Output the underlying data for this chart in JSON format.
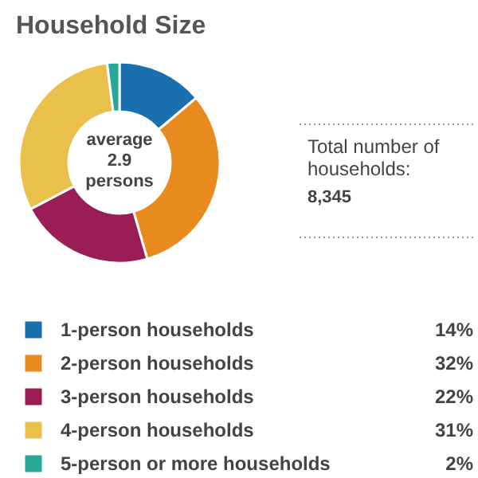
{
  "chart_data": {
    "type": "donut",
    "title": "Household Size",
    "categories": [
      "1-person households",
      "2-person households",
      "3-person households",
      "4-person households",
      "5-person or more households"
    ],
    "values": [
      14,
      32,
      22,
      31,
      2
    ],
    "colors": [
      "#1a6fae",
      "#e98a1e",
      "#9b1d55",
      "#e9c04c",
      "#27a99a"
    ],
    "value_labels": [
      "14%",
      "32%",
      "22%",
      "31%",
      "2%"
    ],
    "legend": "bottom",
    "annotations": [
      "average\n2.9\npersons",
      "Total number of\nhouseholds:",
      "8,345"
    ]
  }
}
